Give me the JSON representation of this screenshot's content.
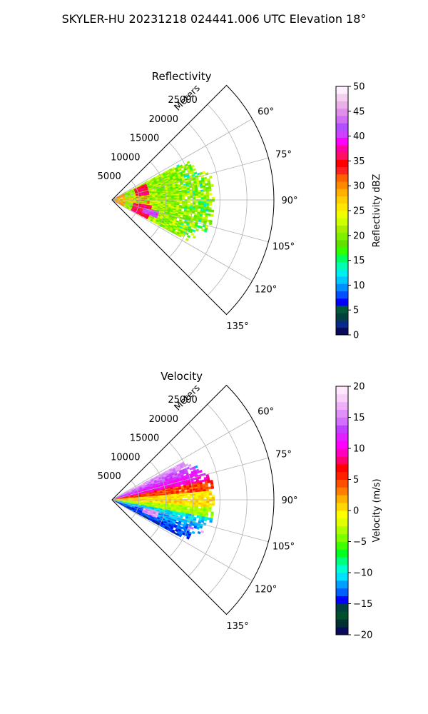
{
  "figure": {
    "title": "SKYLER-HU  20231218  024441.006 UTC Elevation 18°"
  },
  "chart_data": [
    {
      "type": "heatmap",
      "projection": "polar-sector",
      "title": "Reflectivity",
      "radial_label": "Meters",
      "radial_ticks": [
        "5000",
        "10000",
        "15000",
        "20000",
        "25000"
      ],
      "radial_tick_values": [
        5000,
        10000,
        15000,
        20000,
        25000
      ],
      "rmax": 30000,
      "angle_ticks": [
        "60°",
        "75°",
        "90°",
        "105°",
        "120°",
        "135°"
      ],
      "angle_tick_values": [
        60,
        75,
        90,
        105,
        120,
        135
      ],
      "theta_range": [
        45,
        135
      ],
      "data_extent": {
        "theta_min": 62,
        "theta_max": 118,
        "r_max": 19000
      },
      "grid": true,
      "colorbar": {
        "label": "Reflectivity dBZ",
        "min": 0,
        "max": 50,
        "ticks": [
          "0",
          "5",
          "10",
          "15",
          "20",
          "25",
          "30",
          "35",
          "40",
          "45",
          "50"
        ],
        "colors": [
          "#0a0a5a",
          "#0a2a8a",
          "#004040",
          "#005a3a",
          "#0000ff",
          "#0050ff",
          "#0090ff",
          "#00c8ff",
          "#00eeee",
          "#00ffb0",
          "#00ff60",
          "#30ff00",
          "#60e000",
          "#80f000",
          "#a8f000",
          "#d0ff00",
          "#f0ff00",
          "#ffe800",
          "#ffd000",
          "#ffb000",
          "#ff8800",
          "#ff6000",
          "#ff2020",
          "#ff0000",
          "#ff1060",
          "#ff00a0",
          "#ff00ff",
          "#d040ff",
          "#b050ff",
          "#d070f0",
          "#e090e8",
          "#eab0e8",
          "#f4d0f0",
          "#fff0ff"
        ]
      },
      "features": [
        {
          "name": "red-arc-upper",
          "value_dbz": 37,
          "theta": [
            64,
            80
          ],
          "r": [
            4500,
            6500
          ]
        },
        {
          "name": "red-arc-lower",
          "value_dbz": 37,
          "theta": [
            98,
            118
          ],
          "r": [
            4200,
            7000
          ]
        },
        {
          "name": "magenta-core",
          "value_dbz": 42,
          "theta": [
            103,
            112
          ],
          "r": [
            6000,
            8500
          ]
        }
      ]
    },
    {
      "type": "heatmap",
      "projection": "polar-sector",
      "title": "Velocity",
      "radial_label": "Meters",
      "radial_ticks": [
        "5000",
        "10000",
        "15000",
        "20000",
        "25000"
      ],
      "radial_tick_values": [
        5000,
        10000,
        15000,
        20000,
        25000
      ],
      "rmax": 30000,
      "angle_ticks": [
        "60°",
        "75°",
        "90°",
        "105°",
        "120°",
        "135°"
      ],
      "angle_tick_values": [
        60,
        75,
        90,
        105,
        120,
        135
      ],
      "theta_range": [
        45,
        135
      ],
      "data_extent": {
        "theta_min": 62,
        "theta_max": 118,
        "r_max": 19000
      },
      "grid": true,
      "colorbar": {
        "label": "Velocity (m/s)",
        "min": -20,
        "max": 20,
        "ticks": [
          "−20",
          "−15",
          "−10",
          "−5",
          "0",
          "5",
          "10",
          "15",
          "20"
        ],
        "colors": [
          "#0a0a5a",
          "#003030",
          "#005030",
          "#004040",
          "#0000ff",
          "#0060ff",
          "#00a0ff",
          "#00e0ff",
          "#00ffd0",
          "#00ff80",
          "#00ff20",
          "#40ff00",
          "#80ff00",
          "#b0ff00",
          "#e0ff00",
          "#ffff00",
          "#ffd800",
          "#ffb000",
          "#ff8000",
          "#ff5000",
          "#ff2000",
          "#ff0000",
          "#ff0070",
          "#ff00c0",
          "#ff00ff",
          "#e020ff",
          "#c040ff",
          "#d070ff",
          "#e090f8",
          "#f0b0f8",
          "#f8d0f8",
          "#ffe8ff"
        ]
      },
      "features": [
        {
          "name": "outbound-band",
          "value_ms": 12,
          "theta": [
            62,
            78
          ],
          "r": [
            0,
            15000
          ]
        },
        {
          "name": "near-zero-band",
          "value_ms": 1,
          "theta": [
            78,
            96
          ],
          "r": [
            0,
            19000
          ]
        },
        {
          "name": "inbound-band",
          "value_ms": -10,
          "theta": [
            96,
            118
          ],
          "r": [
            0,
            16000
          ]
        },
        {
          "name": "folded-core",
          "value_ms": 16,
          "theta": [
            103,
            112
          ],
          "r": [
            6000,
            8500
          ]
        }
      ]
    }
  ]
}
